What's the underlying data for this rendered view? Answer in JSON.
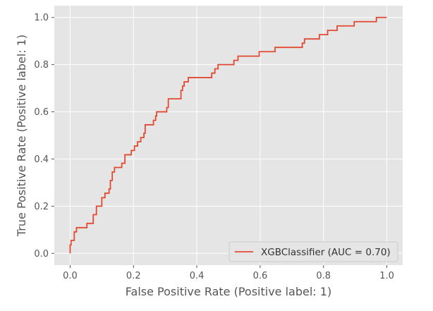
{
  "chart_data": {
    "type": "line",
    "style": "ggplot",
    "xlabel": "False Positive Rate (Positive label: 1)",
    "ylabel": "True Positive Rate (Positive label: 1)",
    "xlim": [
      -0.05,
      1.05
    ],
    "ylim": [
      -0.05,
      1.05
    ],
    "xticks": [
      0.0,
      0.2,
      0.4,
      0.6,
      0.8,
      1.0
    ],
    "xtick_labels": [
      "0.0",
      "0.2",
      "0.4",
      "0.6",
      "0.8",
      "1.0"
    ],
    "yticks": [
      0.0,
      0.2,
      0.4,
      0.6,
      0.8,
      1.0
    ],
    "ytick_labels": [
      "0.0",
      "0.2",
      "0.4",
      "0.6",
      "0.8",
      "1.0"
    ],
    "grid": true,
    "legend_position": "lower-right",
    "background_color": "#e5e5e5",
    "grid_color": "#ffffff",
    "series": [
      {
        "name": "XGBClassifier (AUC = 0.70)",
        "color": "#e24a33",
        "x": [
          0,
          0,
          0.003,
          0.003,
          0.013,
          0.013,
          0.02,
          0.02,
          0.053,
          0.053,
          0.073,
          0.073,
          0.083,
          0.083,
          0.1,
          0.1,
          0.11,
          0.11,
          0.123,
          0.123,
          0.127,
          0.127,
          0.133,
          0.133,
          0.14,
          0.14,
          0.163,
          0.163,
          0.173,
          0.173,
          0.193,
          0.193,
          0.203,
          0.203,
          0.213,
          0.213,
          0.223,
          0.223,
          0.233,
          0.233,
          0.237,
          0.237,
          0.263,
          0.263,
          0.27,
          0.27,
          0.273,
          0.273,
          0.305,
          0.305,
          0.31,
          0.31,
          0.35,
          0.35,
          0.355,
          0.355,
          0.36,
          0.36,
          0.373,
          0.373,
          0.447,
          0.447,
          0.457,
          0.457,
          0.467,
          0.467,
          0.517,
          0.517,
          0.53,
          0.53,
          0.597,
          0.597,
          0.647,
          0.647,
          0.733,
          0.733,
          0.74,
          0.74,
          0.787,
          0.787,
          0.813,
          0.813,
          0.843,
          0.843,
          0.897,
          0.897,
          0.967,
          0.967,
          1.0
        ],
        "y": [
          0,
          0.036,
          0.036,
          0.055,
          0.055,
          0.091,
          0.091,
          0.109,
          0.109,
          0.127,
          0.127,
          0.164,
          0.164,
          0.2,
          0.2,
          0.236,
          0.236,
          0.255,
          0.255,
          0.273,
          0.273,
          0.309,
          0.309,
          0.345,
          0.345,
          0.364,
          0.364,
          0.382,
          0.382,
          0.418,
          0.418,
          0.436,
          0.436,
          0.455,
          0.455,
          0.473,
          0.473,
          0.491,
          0.491,
          0.509,
          0.509,
          0.545,
          0.545,
          0.564,
          0.564,
          0.582,
          0.582,
          0.6,
          0.6,
          0.618,
          0.618,
          0.655,
          0.655,
          0.691,
          0.691,
          0.709,
          0.709,
          0.727,
          0.727,
          0.745,
          0.745,
          0.764,
          0.764,
          0.782,
          0.782,
          0.8,
          0.8,
          0.818,
          0.818,
          0.836,
          0.836,
          0.855,
          0.855,
          0.873,
          0.873,
          0.891,
          0.891,
          0.909,
          0.909,
          0.927,
          0.927,
          0.945,
          0.945,
          0.964,
          0.964,
          0.982,
          0.982,
          1.0,
          1.0
        ]
      }
    ]
  }
}
